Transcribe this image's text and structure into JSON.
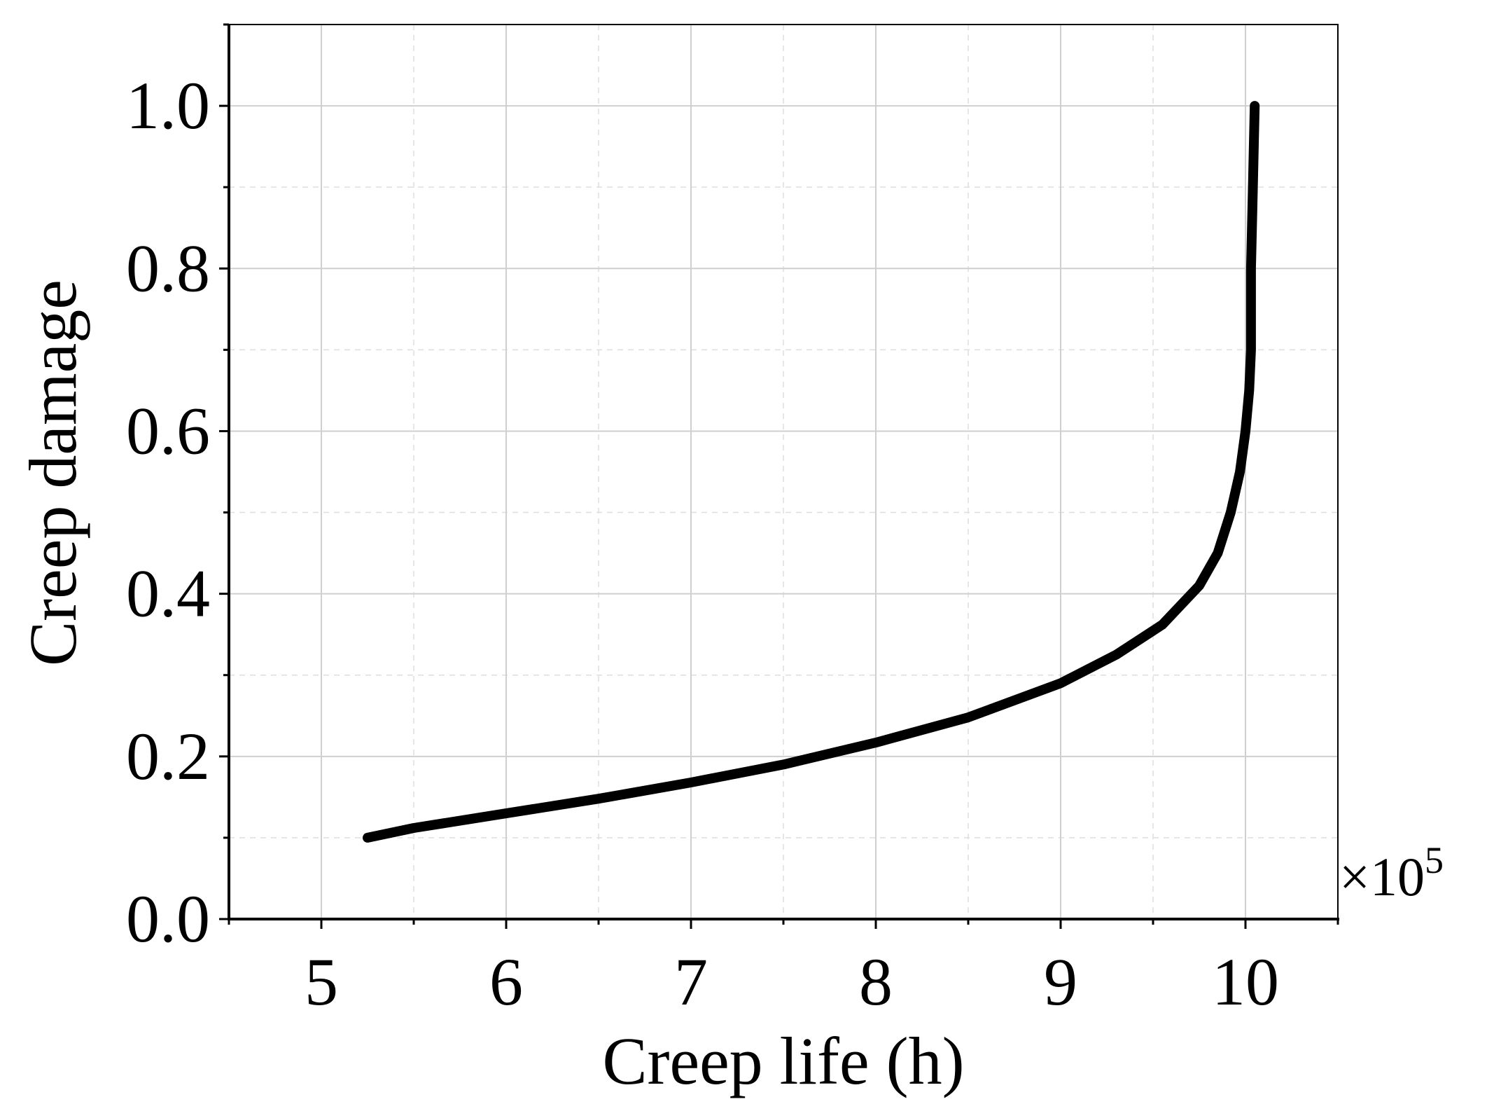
{
  "chart_data": {
    "type": "line",
    "title": "",
    "xlabel": "Creep life (h)",
    "ylabel": "Creep damage",
    "x_multiplier": {
      "base": "×10",
      "exponent": "5"
    },
    "xlim": [
      4.5,
      10.5
    ],
    "ylim": [
      0.0,
      1.1
    ],
    "x_ticks": [
      5,
      6,
      7,
      8,
      9,
      10
    ],
    "x_tick_labels": [
      "5",
      "6",
      "7",
      "8",
      "9",
      "10"
    ],
    "x_minor_ticks": [
      4.5,
      5.5,
      6.5,
      7.5,
      8.5,
      9.5,
      10.5
    ],
    "y_ticks": [
      0.0,
      0.2,
      0.4,
      0.6,
      0.8,
      1.0
    ],
    "y_tick_labels": [
      "0.0",
      "0.2",
      "0.4",
      "0.6",
      "0.8",
      "1.0"
    ],
    "y_minor_ticks": [
      0.1,
      0.3,
      0.5,
      0.7,
      0.9,
      1.1
    ],
    "grid": true,
    "legend": "none",
    "series": [
      {
        "color": "#000000",
        "x": [
          5.25,
          5.5,
          6.0,
          6.5,
          7.0,
          7.5,
          8.0,
          8.5,
          9.0,
          9.3,
          9.55,
          9.75,
          9.85,
          9.92,
          9.97,
          10.0,
          10.02,
          10.03,
          10.03,
          10.04,
          10.05
        ],
        "y": [
          0.1,
          0.112,
          0.13,
          0.148,
          0.168,
          0.19,
          0.217,
          0.248,
          0.29,
          0.325,
          0.362,
          0.41,
          0.45,
          0.5,
          0.55,
          0.6,
          0.65,
          0.7,
          0.8,
          0.9,
          1.0
        ]
      }
    ]
  }
}
